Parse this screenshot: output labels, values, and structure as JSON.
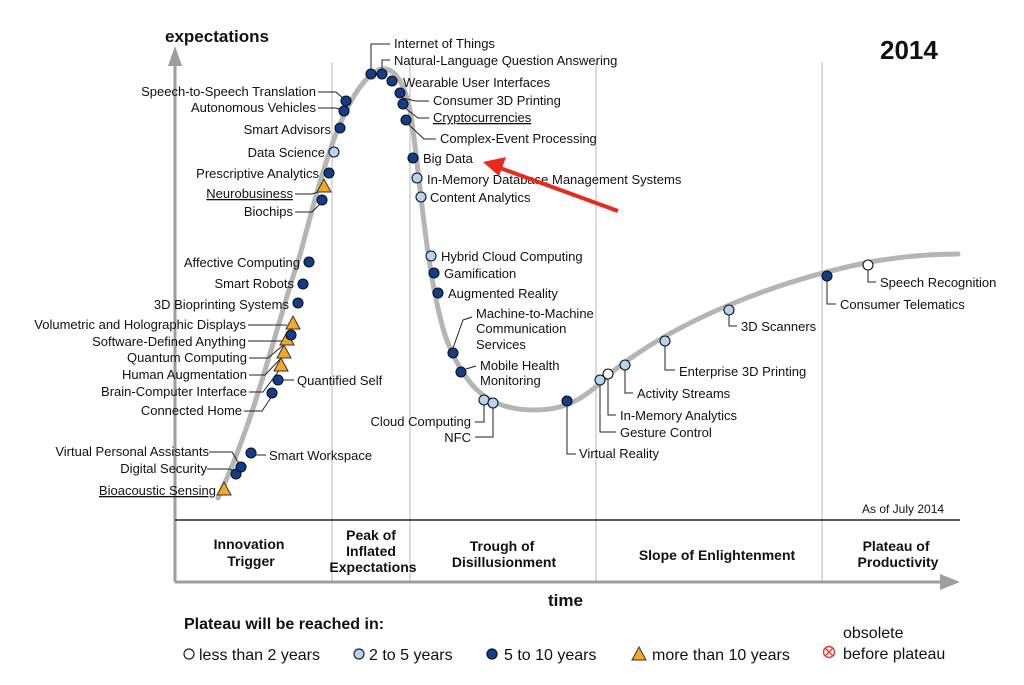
{
  "header": {
    "year": "2014",
    "y_axis_title": "expectations",
    "x_axis_title": "time",
    "as_of": "As of July 2014"
  },
  "phases": [
    {
      "line1": "Innovation",
      "line2": "Trigger",
      "line3": ""
    },
    {
      "line1": "Peak of",
      "line2": "Inflated",
      "line3": "Expectations"
    },
    {
      "line1": "Trough of",
      "line2": "Disillusionment",
      "line3": ""
    },
    {
      "line1": "Slope of Enlightenment",
      "line2": "",
      "line3": ""
    },
    {
      "line1": "Plateau of",
      "line2": "Productivity",
      "line3": ""
    }
  ],
  "legend": {
    "title": "Plateau will be reached in:",
    "items": [
      "less than 2 years",
      "2 to 5 years",
      "5 to 10 years",
      "more than 10 years"
    ],
    "obsolete_line1": "obsolete",
    "obsolete_line2": "before plateau"
  },
  "colors": {
    "curve": "#b5b5b5",
    "dark_blue": "#123d8c",
    "light_blue": "#b4d4f2",
    "white_marker": "#ffffff",
    "orange": "#f5a623",
    "arrow": "#e8291c",
    "obsolete": "#e53935"
  },
  "technologies": [
    {
      "name": "Bioacoustic Sensing",
      "category": "more than 10 years"
    },
    {
      "name": "Digital Security",
      "category": "5 to 10 years"
    },
    {
      "name": "Virtual Personal Assistants",
      "category": "5 to 10 years"
    },
    {
      "name": "Smart Workspace",
      "category": "5 to 10 years"
    },
    {
      "name": "Connected Home",
      "category": "5 to 10 years"
    },
    {
      "name": "Quantified Self",
      "category": "5 to 10 years"
    },
    {
      "name": "Brain-Computer Interface",
      "category": "more than 10 years"
    },
    {
      "name": "Human Augmentation",
      "category": "more than 10 years"
    },
    {
      "name": "Quantum Computing",
      "category": "more than 10 years"
    },
    {
      "name": "Software-Defined Anything",
      "category": "5 to 10 years"
    },
    {
      "name": "Volumetric and Holographic Displays",
      "category": "more than 10 years"
    },
    {
      "name": "3D Bioprinting Systems",
      "category": "5 to 10 years"
    },
    {
      "name": "Smart Robots",
      "category": "5 to 10 years"
    },
    {
      "name": "Affective Computing",
      "category": "5 to 10 years"
    },
    {
      "name": "Biochips",
      "category": "5 to 10 years"
    },
    {
      "name": "Neurobusiness",
      "category": "more than 10 years"
    },
    {
      "name": "Prescriptive Analytics",
      "category": "5 to 10 years"
    },
    {
      "name": "Data Science",
      "category": "2 to 5 years"
    },
    {
      "name": "Smart Advisors",
      "category": "5 to 10 years"
    },
    {
      "name": "Autonomous Vehicles",
      "category": "5 to 10 years"
    },
    {
      "name": "Speech-to-Speech Translation",
      "category": "5 to 10 years"
    },
    {
      "name": "Internet of Things",
      "category": "5 to 10 years"
    },
    {
      "name": "Natural-Language Question Answering",
      "category": "5 to 10 years"
    },
    {
      "name": "Wearable User Interfaces",
      "category": "5 to 10 years"
    },
    {
      "name": "Consumer 3D Printing",
      "category": "5 to 10 years"
    },
    {
      "name": "Cryptocurrencies",
      "category": "5 to 10 years"
    },
    {
      "name": "Complex-Event Processing",
      "category": "5 to 10 years"
    },
    {
      "name": "Big Data",
      "category": "5 to 10 years"
    },
    {
      "name": "In-Memory Database Management Systems",
      "category": "2 to 5 years"
    },
    {
      "name": "Content Analytics",
      "category": "2 to 5 years"
    },
    {
      "name": "Hybrid Cloud Computing",
      "category": "2 to 5 years"
    },
    {
      "name": "Gamification",
      "category": "5 to 10 years"
    },
    {
      "name": "Augmented Reality",
      "category": "5 to 10 years"
    },
    {
      "name": "Machine-to-Machine",
      "category": "5 to 10 years"
    },
    {
      "name": "Communication",
      "category": ""
    },
    {
      "name": "Services",
      "category": ""
    },
    {
      "name": "Mobile Health",
      "category": "5 to 10 years"
    },
    {
      "name": "Monitoring",
      "category": ""
    },
    {
      "name": "Cloud Computing",
      "category": "2 to 5 years"
    },
    {
      "name": "NFC",
      "category": "2 to 5 years"
    },
    {
      "name": "Virtual Reality",
      "category": "5 to 10 years"
    },
    {
      "name": "Gesture Control",
      "category": "2 to 5 years"
    },
    {
      "name": "In-Memory Analytics",
      "category": "less than 2 years"
    },
    {
      "name": "Activity Streams",
      "category": "2 to 5 years"
    },
    {
      "name": "Enterprise 3D Printing",
      "category": "2 to 5 years"
    },
    {
      "name": "3D Scanners",
      "category": "2 to 5 years"
    },
    {
      "name": "Consumer Telematics",
      "category": "5 to 10 years"
    },
    {
      "name": "Speech Recognition",
      "category": "less than 2 years"
    }
  ]
}
